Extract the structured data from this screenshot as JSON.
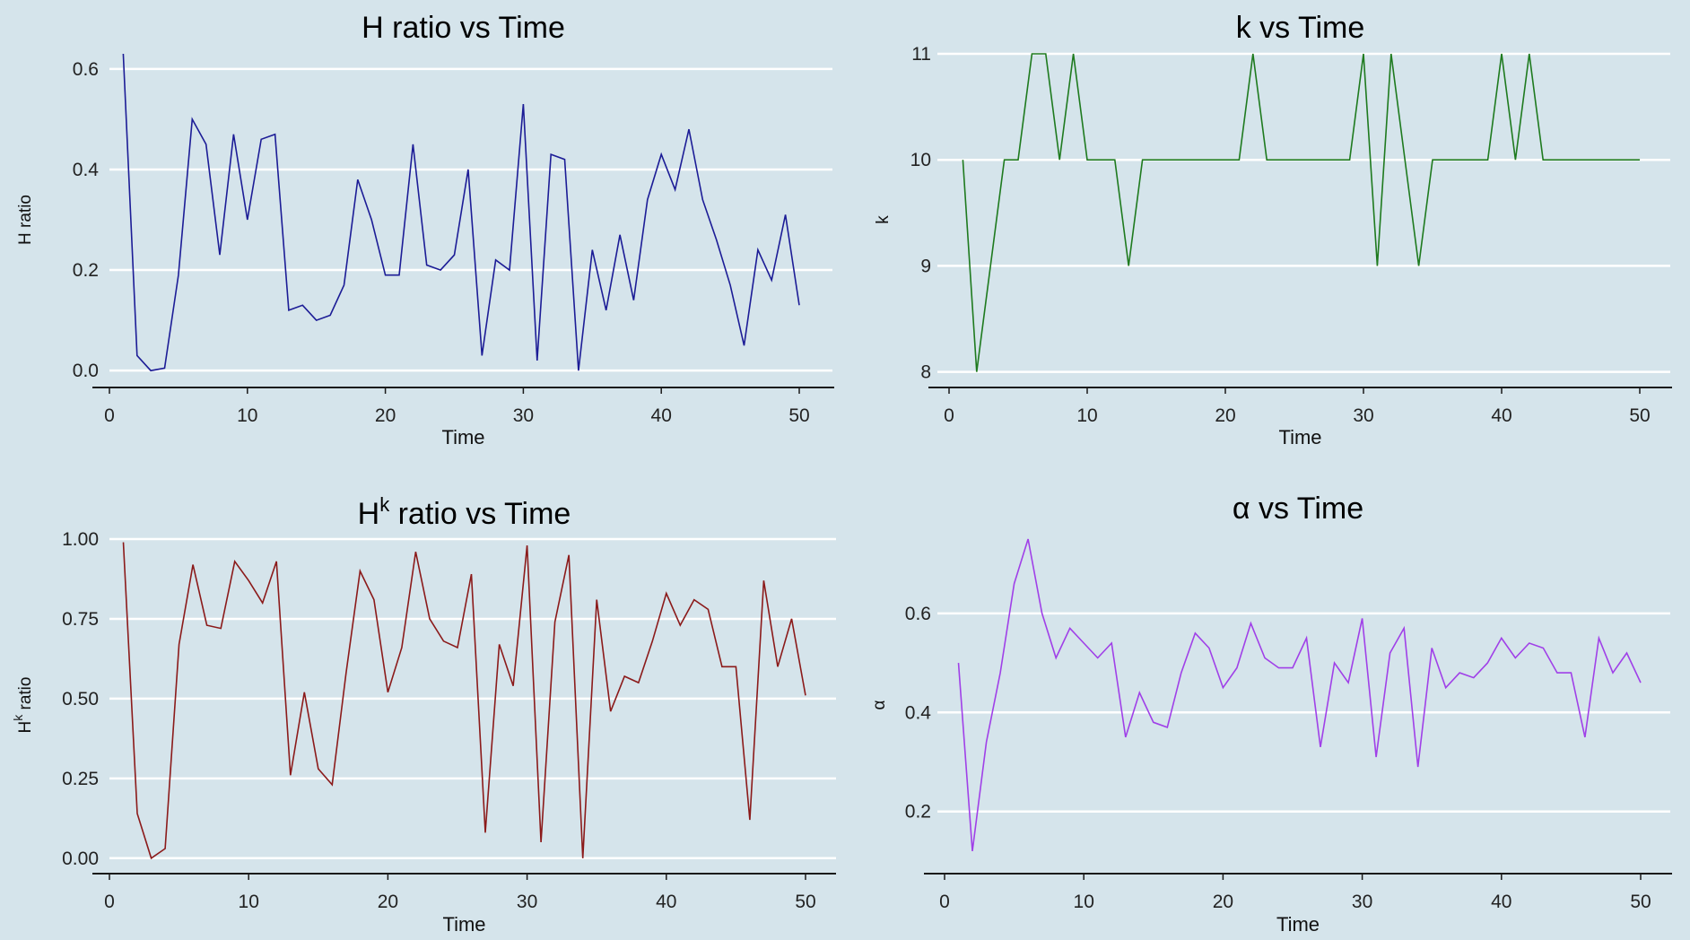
{
  "chart_data": [
    {
      "type": "line",
      "title": "H ratio vs Time",
      "xlabel": "Time",
      "ylabel": "H ratio",
      "xlim": [
        0,
        50
      ],
      "ylim": [
        -0.03,
        0.63
      ],
      "xticks": [
        0,
        10,
        20,
        30,
        40,
        50
      ],
      "yticks": [
        0.0,
        0.2,
        0.4,
        0.6
      ],
      "ytick_labels": [
        "0.0",
        "0.2",
        "0.4",
        "0.6"
      ],
      "grid": "horizontal",
      "color": "#1c1c96",
      "x": [
        1,
        2,
        3,
        4,
        5,
        6,
        7,
        8,
        9,
        10,
        11,
        12,
        13,
        14,
        15,
        16,
        17,
        18,
        19,
        20,
        21,
        22,
        23,
        24,
        25,
        26,
        27,
        28,
        29,
        30,
        31,
        32,
        33,
        34,
        35,
        36,
        37,
        38,
        39,
        40,
        41,
        42,
        43,
        44,
        45,
        46,
        47,
        48,
        49,
        50
      ],
      "values": [
        0.63,
        0.03,
        0.0,
        0.005,
        0.19,
        0.5,
        0.45,
        0.23,
        0.47,
        0.3,
        0.46,
        0.47,
        0.12,
        0.13,
        0.1,
        0.11,
        0.17,
        0.38,
        0.3,
        0.19,
        0.19,
        0.45,
        0.21,
        0.2,
        0.23,
        0.4,
        0.03,
        0.22,
        0.2,
        0.53,
        0.02,
        0.43,
        0.42,
        0.0,
        0.24,
        0.12,
        0.27,
        0.14,
        0.34,
        0.43,
        0.36,
        0.48,
        0.34,
        0.26,
        0.17,
        0.05,
        0.24,
        0.18,
        0.31,
        0.13
      ]
    },
    {
      "type": "line",
      "title": "k vs Time",
      "xlabel": "Time",
      "ylabel": "k",
      "xlim": [
        0,
        50
      ],
      "ylim": [
        7.87,
        11.0
      ],
      "xticks": [
        0,
        10,
        20,
        30,
        40,
        50
      ],
      "yticks": [
        8,
        9,
        10,
        11
      ],
      "ytick_labels": [
        "8",
        "9",
        "10",
        "11"
      ],
      "grid": "horizontal",
      "color": "#1e7a1e",
      "x": [
        1,
        2,
        3,
        4,
        5,
        6,
        7,
        8,
        9,
        10,
        11,
        12,
        13,
        14,
        15,
        16,
        17,
        18,
        19,
        20,
        21,
        22,
        23,
        24,
        25,
        26,
        27,
        28,
        29,
        30,
        31,
        32,
        33,
        34,
        35,
        36,
        37,
        38,
        39,
        40,
        41,
        42,
        43,
        44,
        45,
        46,
        47,
        48,
        49,
        50
      ],
      "values": [
        10,
        8,
        9,
        10,
        10,
        11,
        11,
        10,
        11,
        10,
        10,
        10,
        9,
        10,
        10,
        10,
        10,
        10,
        10,
        10,
        10,
        11,
        10,
        10,
        10,
        10,
        10,
        10,
        10,
        11,
        9,
        11,
        10,
        9,
        10,
        10,
        10,
        10,
        10,
        11,
        10,
        11,
        10,
        10,
        10,
        10,
        10,
        10,
        10,
        10
      ]
    },
    {
      "type": "line",
      "title": "H^k ratio vs Time",
      "title_base": "H",
      "title_sup": "k",
      "title_rest": " ratio vs Time",
      "xlabel": "Time",
      "ylabel": "H^k ratio",
      "ylabel_base": "H",
      "ylabel_sup": "k",
      "ylabel_rest": " ratio",
      "xlim": [
        0,
        50
      ],
      "ylim": [
        -0.04,
        1.0
      ],
      "xticks": [
        0,
        10,
        20,
        30,
        40,
        50
      ],
      "yticks": [
        0.0,
        0.25,
        0.5,
        0.75,
        1.0
      ],
      "ytick_labels": [
        "0.00",
        "0.25",
        "0.50",
        "0.75",
        "1.00"
      ],
      "grid": "horizontal",
      "color": "#8b1a1a",
      "x": [
        1,
        2,
        3,
        4,
        5,
        6,
        7,
        8,
        9,
        10,
        11,
        12,
        13,
        14,
        15,
        16,
        17,
        18,
        19,
        20,
        21,
        22,
        23,
        24,
        25,
        26,
        27,
        28,
        29,
        30,
        31,
        32,
        33,
        34,
        35,
        36,
        37,
        38,
        39,
        40,
        41,
        42,
        43,
        44,
        45,
        46,
        47,
        48,
        49,
        50
      ],
      "values": [
        0.99,
        0.14,
        0.0,
        0.03,
        0.67,
        0.92,
        0.73,
        0.72,
        0.93,
        0.87,
        0.8,
        0.93,
        0.26,
        0.52,
        0.28,
        0.23,
        0.58,
        0.9,
        0.81,
        0.52,
        0.66,
        0.96,
        0.75,
        0.68,
        0.66,
        0.89,
        0.08,
        0.67,
        0.54,
        0.98,
        0.05,
        0.74,
        0.95,
        0.0,
        0.81,
        0.46,
        0.57,
        0.55,
        0.68,
        0.83,
        0.73,
        0.81,
        0.78,
        0.6,
        0.6,
        0.12,
        0.87,
        0.6,
        0.75,
        0.51
      ]
    },
    {
      "type": "line",
      "title": "α vs Time",
      "xlabel": "Time",
      "ylabel": "α",
      "xlim": [
        0,
        50
      ],
      "ylim": [
        0.08,
        0.75
      ],
      "xticks": [
        0,
        10,
        20,
        30,
        40,
        50
      ],
      "yticks": [
        0.2,
        0.4,
        0.6
      ],
      "ytick_labels": [
        "0.2",
        "0.4",
        "0.6"
      ],
      "grid": "horizontal",
      "color": "#a040e8",
      "x": [
        1,
        2,
        3,
        4,
        5,
        6,
        7,
        8,
        9,
        10,
        11,
        12,
        13,
        14,
        15,
        16,
        17,
        18,
        19,
        20,
        21,
        22,
        23,
        24,
        25,
        26,
        27,
        28,
        29,
        30,
        31,
        32,
        33,
        34,
        35,
        36,
        37,
        38,
        39,
        40,
        41,
        42,
        43,
        44,
        45,
        46,
        47,
        48,
        49,
        50
      ],
      "values": [
        0.5,
        0.12,
        0.34,
        0.48,
        0.66,
        0.75,
        0.6,
        0.51,
        0.57,
        0.54,
        0.51,
        0.54,
        0.35,
        0.44,
        0.38,
        0.37,
        0.48,
        0.56,
        0.53,
        0.45,
        0.49,
        0.58,
        0.51,
        0.49,
        0.49,
        0.55,
        0.33,
        0.5,
        0.46,
        0.59,
        0.31,
        0.52,
        0.57,
        0.29,
        0.53,
        0.45,
        0.48,
        0.47,
        0.5,
        0.55,
        0.51,
        0.54,
        0.53,
        0.48,
        0.48,
        0.35,
        0.55,
        0.48,
        0.52,
        0.46
      ]
    }
  ]
}
